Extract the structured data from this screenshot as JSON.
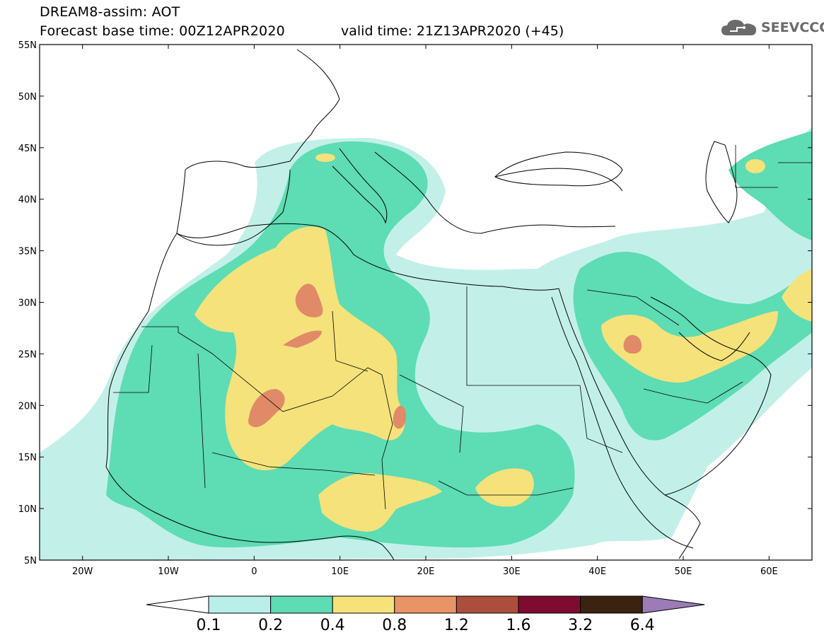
{
  "header": {
    "line1": "DREAM8-assim: AOT",
    "line2": "Forecast base time: 00Z12APR2020",
    "valid": "valid time: 21Z13APR2020 (+45)",
    "logo_text": "SEEVCCC",
    "logo_icon": "cloud-icon"
  },
  "map": {
    "lon_range": [
      -25,
      65
    ],
    "lat_range": [
      5,
      55
    ],
    "lat_labels": [
      "55N",
      "50N",
      "45N",
      "40N",
      "35N",
      "30N",
      "25N",
      "20N",
      "15N",
      "10N",
      "5N"
    ],
    "lon_labels": [
      "20W",
      "10W",
      "0",
      "10E",
      "20E",
      "30E",
      "40E",
      "50E",
      "60E"
    ]
  },
  "colorbar": {
    "labels": [
      "0.1",
      "0.2",
      "0.4",
      "0.8",
      "1.2",
      "1.6",
      "3.2",
      "6.4"
    ],
    "colors": [
      "#b9efe7",
      "#5edcb3",
      "#f5e27b",
      "#e89467",
      "#ab4f3c",
      "#7e0b30",
      "#3b2211",
      "#9b7cb6"
    ],
    "low_color": "#ffffff"
  },
  "palette": {
    "aot_01_02": "#c2f0e8",
    "aot_02_04": "#5edcb3",
    "aot_04_08": "#f5e27b",
    "aot_08_12": "#e08a67",
    "border": "#000000"
  }
}
